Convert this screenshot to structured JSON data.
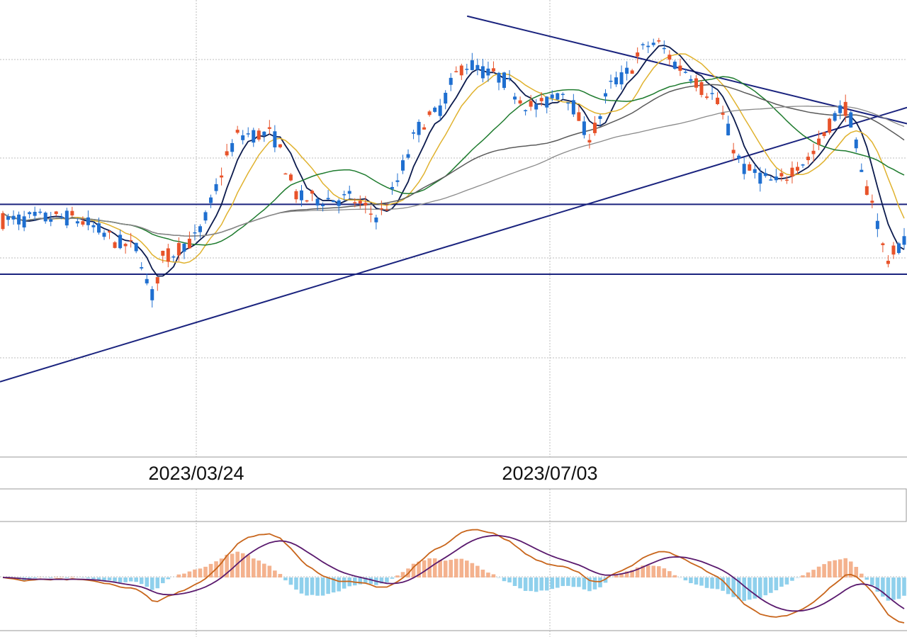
{
  "chart_data": {
    "type": "candlestick",
    "panels": [
      "price",
      "macd"
    ],
    "x_ticks": [
      "2023/03/24",
      "2023/07/03"
    ],
    "grid": true,
    "colors": {
      "up": "#e8532a",
      "down": "#1f6fd0",
      "ma_short": "#0b1a4d",
      "ma_mid": "#e0b22e",
      "ma_long": "#1e7b2e",
      "ma_xlong": "#5a5a5a",
      "ma_xxlong": "#8a8a8a",
      "trendline": "#1a237e",
      "macd": "#c8651b",
      "signal": "#5a1a6e",
      "hist_pos": "#f4b28e",
      "hist_neg": "#8fd0ec"
    },
    "trendlines": [
      {
        "name": "upper-resistance",
        "from": [
          0.515,
          102
        ],
        "to": [
          1.0,
          82
        ]
      },
      {
        "name": "rising-support",
        "from": [
          0.0,
          34
        ],
        "to": [
          1.0,
          85
        ]
      },
      {
        "name": "horizontal-resistance",
        "from": [
          0.0,
          67
        ],
        "to": [
          1.0,
          67
        ]
      },
      {
        "name": "horizontal-support",
        "from": [
          0.0,
          54
        ],
        "to": [
          1.0,
          54
        ]
      }
    ],
    "price_ylim": [
      20,
      105
    ],
    "macd_ylim": [
      -1,
      1
    ]
  }
}
